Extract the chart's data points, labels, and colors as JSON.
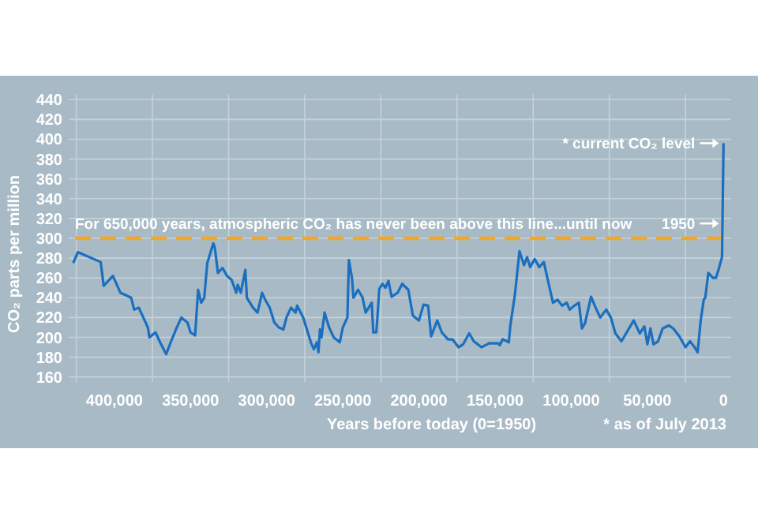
{
  "chart_data": {
    "type": "line",
    "xlabel": "Years before today (0=1950)",
    "ylabel": "CO₂ parts per million",
    "xlim": [
      430000,
      -5000
    ],
    "ylim": [
      155,
      445
    ],
    "xticks": [
      {
        "value": 425000,
        "label": null
      },
      {
        "value": 400000,
        "label": "400,000"
      },
      {
        "value": 375000,
        "label": null
      },
      {
        "value": 350000,
        "label": "350,000"
      },
      {
        "value": 325000,
        "label": null
      },
      {
        "value": 300000,
        "label": "300,000"
      },
      {
        "value": 275000,
        "label": null
      },
      {
        "value": 250000,
        "label": "250,000"
      },
      {
        "value": 225000,
        "label": null
      },
      {
        "value": 200000,
        "label": "200,000"
      },
      {
        "value": 175000,
        "label": null
      },
      {
        "value": 150000,
        "label": "150,000"
      },
      {
        "value": 125000,
        "label": null
      },
      {
        "value": 100000,
        "label": "100,000"
      },
      {
        "value": 75000,
        "label": null
      },
      {
        "value": 50000,
        "label": "50,000"
      },
      {
        "value": 25000,
        "label": null
      },
      0
    ],
    "yticks": [
      160,
      180,
      200,
      220,
      240,
      260,
      280,
      300,
      320,
      340,
      360,
      380,
      400,
      420,
      440
    ],
    "grid": true,
    "marker": "none",
    "line_style": "solid",
    "ref_lines": [
      {
        "axis": "y",
        "value": 300,
        "label": "For 650,000 years, atmospheric CO₂ has never been above this line...until now",
        "color": "#f5a623",
        "line_style": "dashed"
      }
    ],
    "annotations": [
      {
        "text": "* current CO₂ level",
        "x": 0,
        "y": 396
      },
      {
        "text": "1950",
        "x": 0,
        "y": 315
      },
      "* as of July 2013"
    ],
    "series": [
      {
        "color": "#1a6fc0",
        "x": [
          427000,
          424000,
          409000,
          407000,
          401000,
          396000,
          389000,
          387000,
          384000,
          378000,
          377000,
          373000,
          370000,
          366000,
          363000,
          359000,
          356000,
          352000,
          350000,
          347000,
          345000,
          343000,
          341000,
          339000,
          335000,
          334000,
          332000,
          329000,
          326000,
          323000,
          320000,
          319000,
          317000,
          314000,
          313000,
          309000,
          306000,
          303000,
          301000,
          298000,
          295000,
          292000,
          289000,
          287000,
          284000,
          281000,
          280000,
          276000,
          271000,
          269000,
          267000,
          266000,
          265000,
          264000,
          262000,
          259000,
          256000,
          252000,
          250000,
          247000,
          246000,
          244000,
          243000,
          240000,
          237000,
          235000,
          231000,
          230000,
          228000,
          226000,
          224000,
          222000,
          220000,
          218000,
          214000,
          211000,
          207000,
          204000,
          200000,
          197000,
          194000,
          192000,
          188000,
          185000,
          181000,
          178000,
          174000,
          171000,
          167000,
          164000,
          159000,
          154000,
          148000,
          147000,
          145000,
          141000,
          140000,
          137000,
          134000,
          131000,
          129000,
          127000,
          124000,
          121000,
          118000,
          116000,
          112000,
          109000,
          106000,
          103000,
          101000,
          98000,
          95000,
          93000,
          91000,
          87000,
          84000,
          81000,
          77000,
          74000,
          71000,
          67000,
          64000,
          59000,
          55000,
          52000,
          50000,
          48000,
          46000,
          43000,
          40000,
          36000,
          33000,
          29000,
          25000,
          22000,
          19000,
          17000,
          15000,
          13000,
          12000,
          10000,
          7000,
          5000,
          3000,
          1000,
          0
        ],
        "values": [
          275,
          286,
          276,
          252,
          262,
          245,
          240,
          228,
          230,
          210,
          200,
          205,
          195,
          183,
          195,
          210,
          220,
          215,
          205,
          202,
          248,
          235,
          240,
          275,
          295,
          290,
          265,
          270,
          262,
          258,
          245,
          253,
          245,
          268,
          240,
          230,
          225,
          245,
          238,
          230,
          215,
          210,
          208,
          220,
          230,
          225,
          232,
          220,
          195,
          188,
          195,
          185,
          208,
          200,
          225,
          210,
          200,
          195,
          210,
          220,
          278,
          260,
          240,
          248,
          240,
          225,
          235,
          205,
          205,
          249,
          254,
          250,
          257,
          241,
          245,
          254,
          248,
          222,
          217,
          233,
          232,
          201,
          217,
          205,
          198,
          198,
          190,
          193,
          204,
          196,
          190,
          194,
          194,
          192,
          198,
          195,
          212,
          243,
          287,
          273,
          281,
          271,
          279,
          271,
          276,
          262,
          235,
          238,
          232,
          235,
          228,
          232,
          235,
          209,
          214,
          241,
          230,
          220,
          228,
          220,
          204,
          196,
          204,
          217,
          204,
          211,
          193,
          209,
          193,
          196,
          209,
          212,
          209,
          201,
          190,
          196,
          190,
          185,
          217,
          238,
          240,
          265,
          260,
          260,
          270,
          281,
          396
        ]
      }
    ]
  }
}
